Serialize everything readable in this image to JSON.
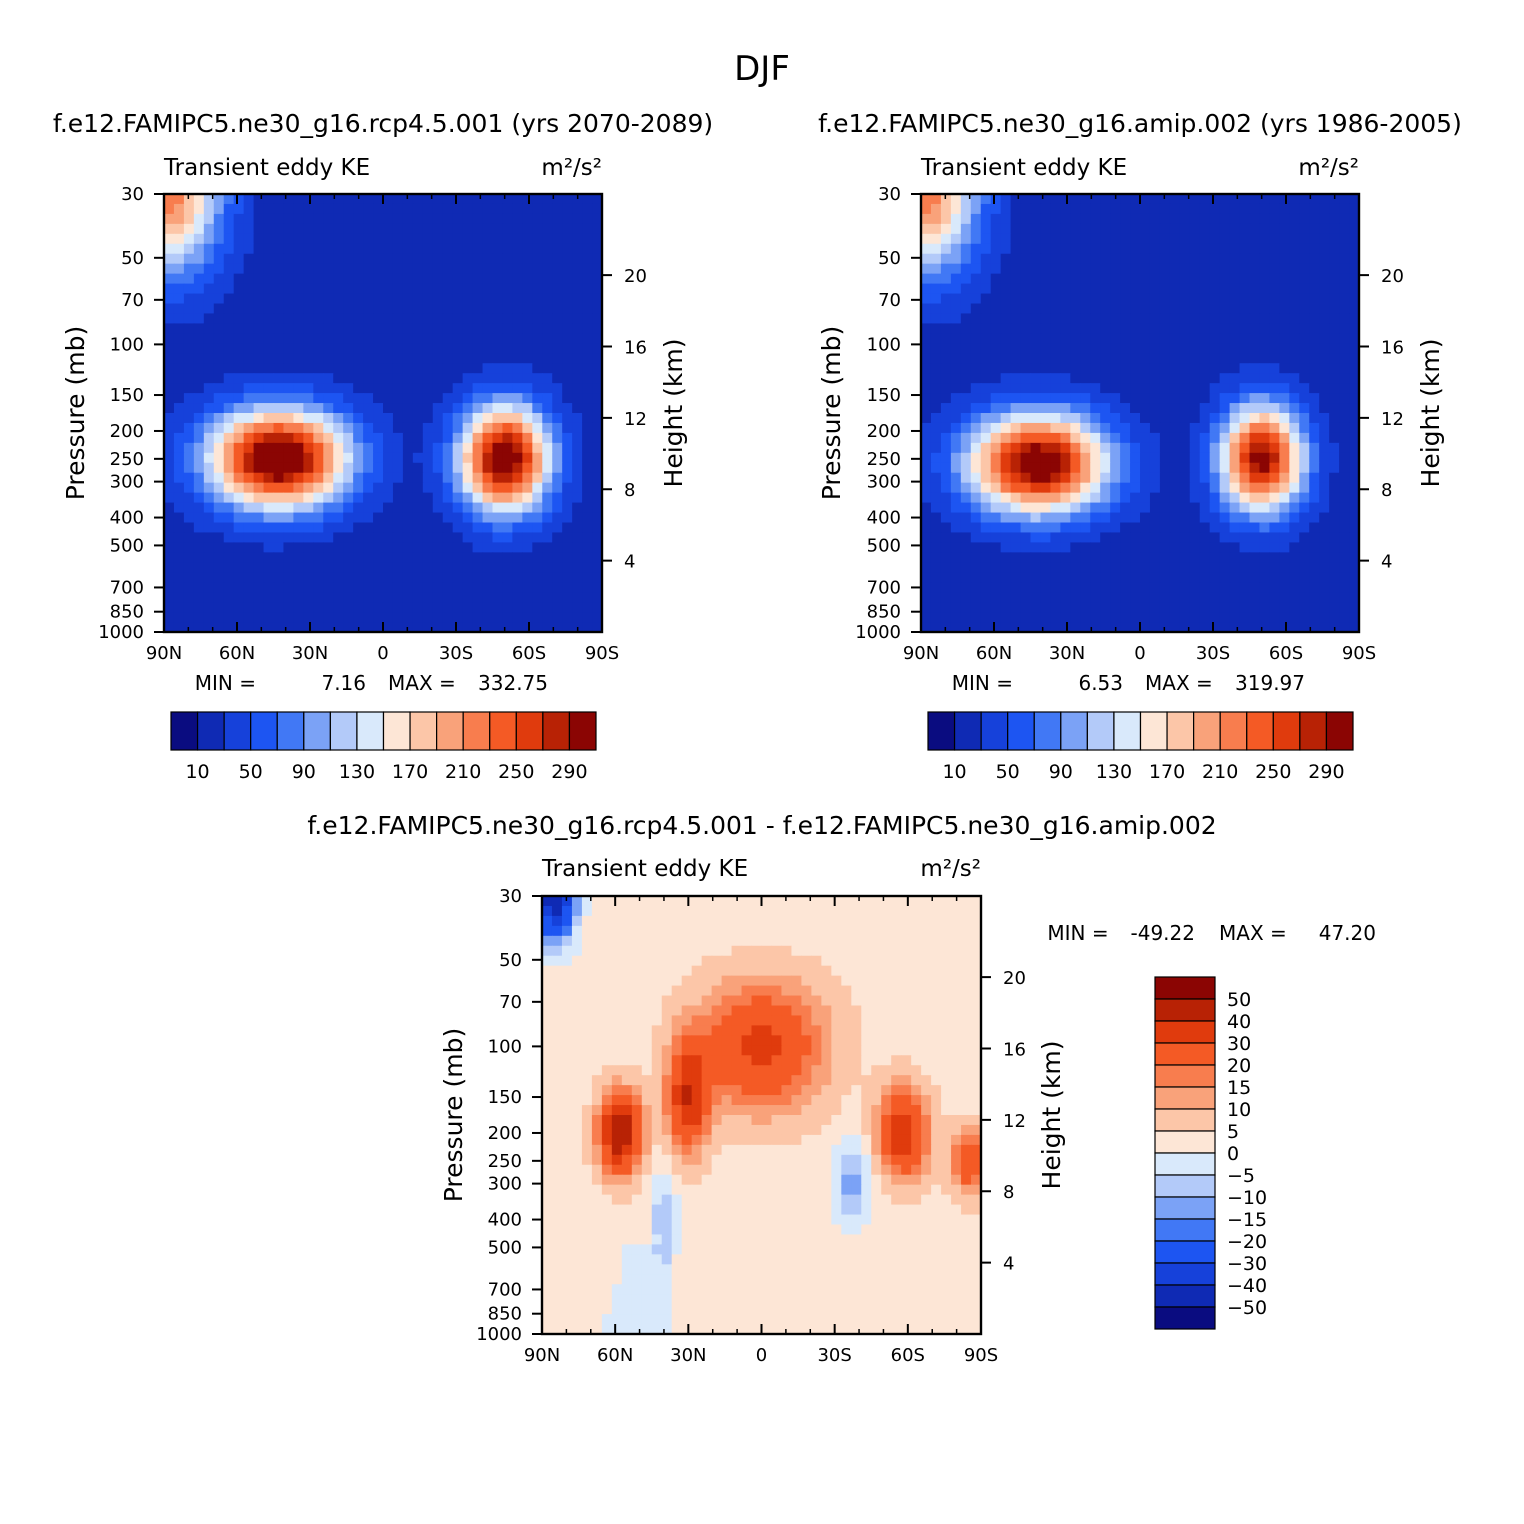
{
  "figure": {
    "title": "DJF"
  },
  "colors": {
    "ke": [
      "#0a0c80",
      "#0f2ab4",
      "#1641da",
      "#1d55f2",
      "#4178f5",
      "#7ba2f6",
      "#b3caf9",
      "#d9e9fb",
      "#fde6d6",
      "#fcc6a8",
      "#f9a27a",
      "#f87d4e",
      "#f45a25",
      "#e03b0d",
      "#b82205",
      "#8b0503"
    ],
    "diff": [
      "#0a0c80",
      "#0f2ab4",
      "#1641da",
      "#1d55f2",
      "#4178f5",
      "#7ba2f6",
      "#b3caf9",
      "#d9e9fb",
      "#fde6d6",
      "#fcc6a8",
      "#f9a27a",
      "#f87d4e",
      "#f45a25",
      "#e03b0d",
      "#b82205",
      "#8b0503"
    ]
  },
  "chart_data": [
    {
      "type": "heatmap",
      "title": "f.e12.FAMIPC5.ne30_g16.rcp4.5.001 (yrs 2070-2089)",
      "left_label": "Transient eddy KE",
      "right_label": "m²/s²",
      "xlabel": "",
      "ylabel": "Pressure (mb)",
      "ylabel_right": "Height (km)",
      "x_ticks": [
        "90N",
        "60N",
        "30N",
        "0",
        "30S",
        "60S",
        "90S"
      ],
      "x_range": [
        90,
        -90
      ],
      "y_ticks": [
        30,
        50,
        70,
        100,
        150,
        200,
        250,
        300,
        400,
        500,
        700,
        850,
        1000
      ],
      "y_range": [
        30,
        1000
      ],
      "y_scale": "log",
      "height_ticks": [
        20,
        16,
        12,
        8,
        4
      ],
      "min_label": "MIN =",
      "min_value": "7.16",
      "max_label": "MAX =",
      "max_value": "332.75",
      "colorbar_levels": [
        10,
        30,
        50,
        70,
        90,
        110,
        130,
        150,
        170,
        190,
        210,
        230,
        250,
        270,
        290
      ],
      "colorbar_tick_labels": [
        "10",
        "50",
        "90",
        "130",
        "170",
        "210",
        "250",
        "290"
      ],
      "maxima": [
        {
          "lat": 43,
          "p": 250,
          "value": 332.75,
          "sx": 20,
          "sy": 0.28
        },
        {
          "lat": -50,
          "p": 250,
          "value": 320,
          "sx": 13,
          "sy": 0.3
        }
      ],
      "min_at": {
        "lat": 0,
        "p": 1000,
        "value": 7.16
      }
    },
    {
      "type": "heatmap",
      "title": "f.e12.FAMIPC5.ne30_g16.amip.002 (yrs 1986-2005)",
      "left_label": "Transient eddy KE",
      "right_label": "m²/s²",
      "xlabel": "",
      "ylabel": "Pressure (mb)",
      "ylabel_right": "Height (km)",
      "x_ticks": [
        "90N",
        "60N",
        "30N",
        "0",
        "30S",
        "60S",
        "90S"
      ],
      "x_range": [
        90,
        -90
      ],
      "y_ticks": [
        30,
        50,
        70,
        100,
        150,
        200,
        250,
        300,
        400,
        500,
        700,
        850,
        1000
      ],
      "y_range": [
        30,
        1000
      ],
      "y_scale": "log",
      "height_ticks": [
        20,
        16,
        12,
        8,
        4
      ],
      "min_label": "MIN =",
      "min_value": "6.53",
      "max_label": "MAX =",
      "max_value": "319.97",
      "colorbar_levels": [
        10,
        30,
        50,
        70,
        90,
        110,
        130,
        150,
        170,
        190,
        210,
        230,
        250,
        270,
        290
      ],
      "colorbar_tick_labels": [
        "10",
        "50",
        "90",
        "130",
        "170",
        "210",
        "250",
        "290"
      ],
      "maxima": [
        {
          "lat": 42,
          "p": 260,
          "value": 319.97,
          "sx": 20,
          "sy": 0.28
        },
        {
          "lat": -50,
          "p": 250,
          "value": 300,
          "sx": 12,
          "sy": 0.3
        }
      ],
      "min_at": {
        "lat": 0,
        "p": 1000,
        "value": 6.53
      }
    },
    {
      "type": "heatmap",
      "title": "f.e12.FAMIPC5.ne30_g16.rcp4.5.001 - f.e12.FAMIPC5.ne30_g16.amip.002",
      "left_label": "Transient eddy KE",
      "right_label": "m²/s²",
      "xlabel": "",
      "ylabel": "Pressure (mb)",
      "ylabel_right": "Height (km)",
      "x_ticks": [
        "90N",
        "60N",
        "30N",
        "0",
        "30S",
        "60S",
        "90S"
      ],
      "x_range": [
        90,
        -90
      ],
      "y_ticks": [
        30,
        50,
        70,
        100,
        150,
        200,
        250,
        300,
        400,
        500,
        700,
        850,
        1000
      ],
      "y_range": [
        30,
        1000
      ],
      "y_scale": "log",
      "height_ticks": [
        20,
        16,
        12,
        8,
        4
      ],
      "min_label": "MIN =",
      "min_value": "-49.22",
      "max_label": "MAX =",
      "max_value": "47.20",
      "colorbar_levels": [
        -50,
        -40,
        -30,
        -20,
        -15,
        -10,
        -5,
        0,
        5,
        10,
        15,
        20,
        30,
        40,
        50
      ],
      "colorbar_tick_labels": [
        "50",
        "40",
        "30",
        "20",
        "15",
        "10",
        "5",
        "0",
        "−5",
        "−10",
        "−15",
        "−20",
        "−30",
        "−40",
        "−50"
      ],
      "features": [
        {
          "lat": 58,
          "p": 200,
          "value": 47.2,
          "sx": 6,
          "sy": 0.22
        },
        {
          "lat": 30,
          "p": 150,
          "value": 35,
          "sx": 6,
          "sy": 0.3
        },
        {
          "lat": 0,
          "p": 100,
          "value": 30,
          "sx": 18,
          "sy": 0.35
        },
        {
          "lat": -58,
          "p": 200,
          "value": 35,
          "sx": 7,
          "sy": 0.25
        },
        {
          "lat": -85,
          "p": 250,
          "value": 25,
          "sx": 5,
          "sy": 0.18
        },
        {
          "lat": 85,
          "p": 30,
          "value": -49.22,
          "sx": 6,
          "sy": 0.25
        },
        {
          "lat": 40,
          "p": 400,
          "value": -12,
          "sx": 4,
          "sy": 0.28
        },
        {
          "lat": -37,
          "p": 300,
          "value": -15,
          "sx": 5,
          "sy": 0.25
        }
      ]
    }
  ]
}
